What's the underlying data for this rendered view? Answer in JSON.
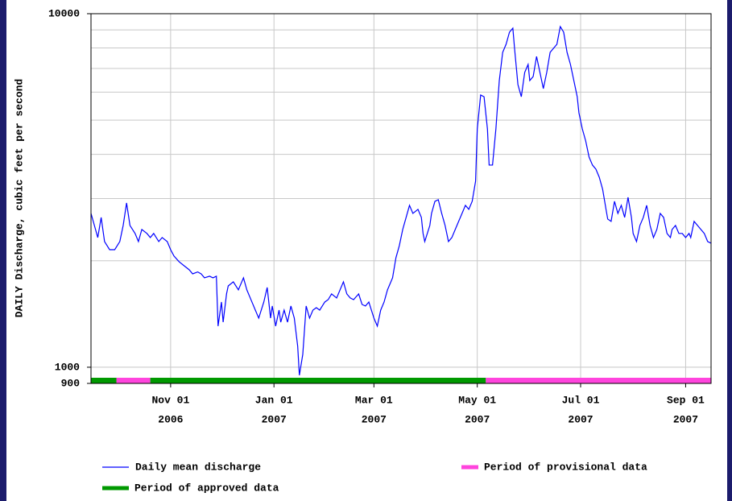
{
  "chart_data": {
    "type": "line",
    "ylabel": "DAILY Discharge, cubic feet per second",
    "log_y": true,
    "grid": true,
    "ylim": [
      900,
      10000
    ],
    "yticks": [
      900,
      1000,
      10000
    ],
    "ygrid": [
      2000,
      3000,
      4000,
      5000,
      6000,
      7000,
      8000,
      9000
    ],
    "xlim": [
      "2006-09-15",
      "2007-09-16"
    ],
    "xticks": [
      {
        "value": "2006-11-01",
        "label": [
          "Nov 01",
          "2006"
        ]
      },
      {
        "value": "2007-01-01",
        "label": [
          "Jan 01",
          "2007"
        ]
      },
      {
        "value": "2007-03-01",
        "label": [
          "Mar 01",
          "2007"
        ]
      },
      {
        "value": "2007-05-01",
        "label": [
          "May 01",
          "2007"
        ]
      },
      {
        "value": "2007-07-01",
        "label": [
          "Jul 01",
          "2007"
        ]
      },
      {
        "value": "2007-09-01",
        "label": [
          "Sep 01",
          "2007"
        ]
      }
    ],
    "x": [
      "2006-09-15",
      "2006-09-17",
      "2006-09-19",
      "2006-09-21",
      "2006-09-23",
      "2006-09-26",
      "2006-09-29",
      "2006-10-02",
      "2006-10-04",
      "2006-10-06",
      "2006-10-08",
      "2006-10-11",
      "2006-10-13",
      "2006-10-15",
      "2006-10-18",
      "2006-10-20",
      "2006-10-22",
      "2006-10-25",
      "2006-10-27",
      "2006-10-30",
      "2006-11-01",
      "2006-11-03",
      "2006-11-06",
      "2006-11-09",
      "2006-11-12",
      "2006-11-14",
      "2006-11-17",
      "2006-11-19",
      "2006-11-21",
      "2006-11-24",
      "2006-11-26",
      "2006-11-28",
      "2006-11-29",
      "2006-12-01",
      "2006-12-02",
      "2006-12-04",
      "2006-12-05",
      "2006-12-08",
      "2006-12-11",
      "2006-12-14",
      "2006-12-16",
      "2006-12-18",
      "2006-12-21",
      "2006-12-23",
      "2006-12-26",
      "2006-12-28",
      "2006-12-30",
      "2006-12-31",
      "2007-01-02",
      "2007-01-04",
      "2007-01-05",
      "2007-01-07",
      "2007-01-09",
      "2007-01-11",
      "2007-01-13",
      "2007-01-15",
      "2007-01-16",
      "2007-01-18",
      "2007-01-20",
      "2007-01-22",
      "2007-01-24",
      "2007-01-26",
      "2007-01-28",
      "2007-01-31",
      "2007-02-02",
      "2007-02-04",
      "2007-02-07",
      "2007-02-09",
      "2007-02-11",
      "2007-02-13",
      "2007-02-15",
      "2007-02-17",
      "2007-02-20",
      "2007-02-22",
      "2007-02-24",
      "2007-02-26",
      "2007-03-01",
      "2007-03-03",
      "2007-03-05",
      "2007-03-07",
      "2007-03-09",
      "2007-03-12",
      "2007-03-14",
      "2007-03-16",
      "2007-03-18",
      "2007-03-20",
      "2007-03-22",
      "2007-03-24",
      "2007-03-27",
      "2007-03-29",
      "2007-03-30",
      "2007-03-31",
      "2007-04-03",
      "2007-04-04",
      "2007-04-06",
      "2007-04-08",
      "2007-04-10",
      "2007-04-12",
      "2007-04-14",
      "2007-04-16",
      "2007-04-18",
      "2007-04-20",
      "2007-04-22",
      "2007-04-24",
      "2007-04-26",
      "2007-04-28",
      "2007-04-30",
      "2007-05-01",
      "2007-05-03",
      "2007-05-05",
      "2007-05-07",
      "2007-05-08",
      "2007-05-10",
      "2007-05-12",
      "2007-05-14",
      "2007-05-16",
      "2007-05-18",
      "2007-05-20",
      "2007-05-22",
      "2007-05-23",
      "2007-05-25",
      "2007-05-27",
      "2007-05-29",
      "2007-05-31",
      "2007-06-01",
      "2007-06-03",
      "2007-06-05",
      "2007-06-07",
      "2007-06-09",
      "2007-06-11",
      "2007-06-13",
      "2007-06-15",
      "2007-06-17",
      "2007-06-19",
      "2007-06-21",
      "2007-06-23",
      "2007-06-25",
      "2007-06-27",
      "2007-06-29",
      "2007-06-30",
      "2007-07-02",
      "2007-07-04",
      "2007-07-06",
      "2007-07-08",
      "2007-07-10",
      "2007-07-12",
      "2007-07-14",
      "2007-07-16",
      "2007-07-17",
      "2007-07-19",
      "2007-07-21",
      "2007-07-23",
      "2007-07-25",
      "2007-07-27",
      "2007-07-29",
      "2007-07-31",
      "2007-08-01",
      "2007-08-03",
      "2007-08-05",
      "2007-08-07",
      "2007-08-09",
      "2007-08-11",
      "2007-08-13",
      "2007-08-15",
      "2007-08-17",
      "2007-08-19",
      "2007-08-21",
      "2007-08-23",
      "2007-08-24",
      "2007-08-26",
      "2007-08-28",
      "2007-08-30",
      "2007-09-01",
      "2007-09-03",
      "2007-09-04",
      "2007-09-06",
      "2007-09-08",
      "2007-09-10",
      "2007-09-12",
      "2007-09-14",
      "2007-09-16"
    ],
    "series": [
      {
        "name": "Daily mean discharge",
        "color": "#0000ff",
        "values": [
          2723,
          2518,
          2327,
          2653,
          2267,
          2150,
          2150,
          2267,
          2518,
          2915,
          2518,
          2390,
          2267,
          2453,
          2390,
          2327,
          2390,
          2267,
          2327,
          2267,
          2150,
          2063,
          1988,
          1936,
          1886,
          1837,
          1860,
          1837,
          1790,
          1809,
          1790,
          1809,
          1307,
          1529,
          1341,
          1612,
          1698,
          1744,
          1655,
          1790,
          1655,
          1570,
          1451,
          1377,
          1529,
          1681,
          1377,
          1490,
          1307,
          1451,
          1341,
          1451,
          1341,
          1490,
          1377,
          1146,
          949,
          1087,
          1490,
          1377,
          1451,
          1474,
          1451,
          1529,
          1553,
          1612,
          1570,
          1655,
          1744,
          1612,
          1570,
          1553,
          1612,
          1505,
          1490,
          1529,
          1377,
          1307,
          1451,
          1529,
          1655,
          1790,
          2041,
          2208,
          2453,
          2653,
          2870,
          2723,
          2796,
          2653,
          2390,
          2267,
          2518,
          2723,
          2946,
          2977,
          2723,
          2518,
          2267,
          2327,
          2453,
          2585,
          2723,
          2870,
          2796,
          2946,
          3358,
          4722,
          5888,
          5823,
          4722,
          3731,
          3731,
          4722,
          6470,
          7775,
          8193,
          8864,
          9100,
          7980,
          6303,
          5823,
          6820,
          7185,
          6470,
          6643,
          7570,
          6820,
          6140,
          6820,
          7775,
          7980,
          8193,
          9196,
          8864,
          7775,
          7185,
          6470,
          5823,
          5246,
          4722,
          4365,
          3930,
          3731,
          3634,
          3448,
          3187,
          2796,
          2625,
          2585,
          2946,
          2723,
          2870,
          2653,
          3024,
          2653,
          2390,
          2267,
          2518,
          2653,
          2870,
          2518,
          2327,
          2453,
          2723,
          2653,
          2390,
          2327,
          2453,
          2518,
          2390,
          2390,
          2327,
          2390,
          2327,
          2585,
          2518,
          2453,
          2390,
          2267,
          2243
        ]
      }
    ],
    "periods": [
      {
        "name": "Period of provisional data",
        "color": "#ff44dd",
        "ranges": [
          [
            "2006-09-30",
            "2006-10-20"
          ],
          [
            "2007-05-06",
            "2007-09-16"
          ]
        ]
      },
      {
        "name": "Period of approved data",
        "color": "#009900",
        "ranges": [
          [
            "2006-09-15",
            "2006-09-30"
          ],
          [
            "2006-10-20",
            "2007-05-06"
          ]
        ]
      }
    ]
  }
}
